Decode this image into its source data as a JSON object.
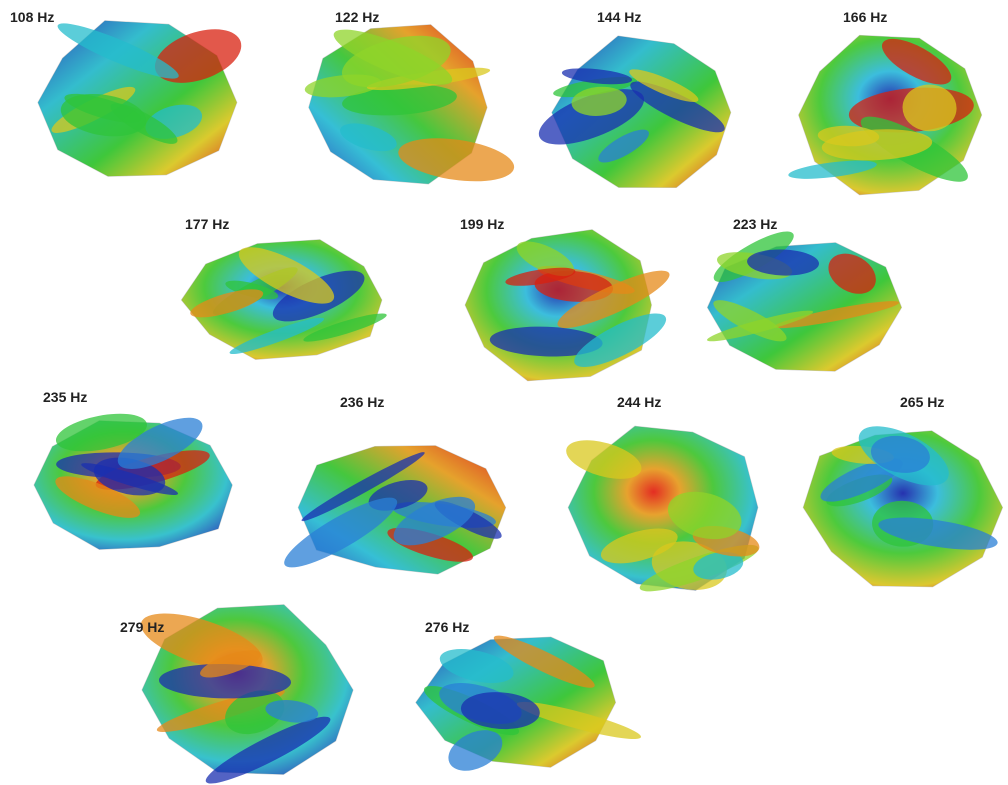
{
  "panels": [
    {
      "label": "108 Hz"
    },
    {
      "label": "122 Hz"
    },
    {
      "label": "144 Hz"
    },
    {
      "label": "166 Hz"
    },
    {
      "label": "177 Hz"
    },
    {
      "label": "199 Hz"
    },
    {
      "label": "223 Hz"
    },
    {
      "label": "235 Hz"
    },
    {
      "label": "236 Hz"
    },
    {
      "label": "244 Hz"
    },
    {
      "label": "265 Hz"
    },
    {
      "label": "279 Hz"
    },
    {
      "label": "276 Hz"
    }
  ]
}
